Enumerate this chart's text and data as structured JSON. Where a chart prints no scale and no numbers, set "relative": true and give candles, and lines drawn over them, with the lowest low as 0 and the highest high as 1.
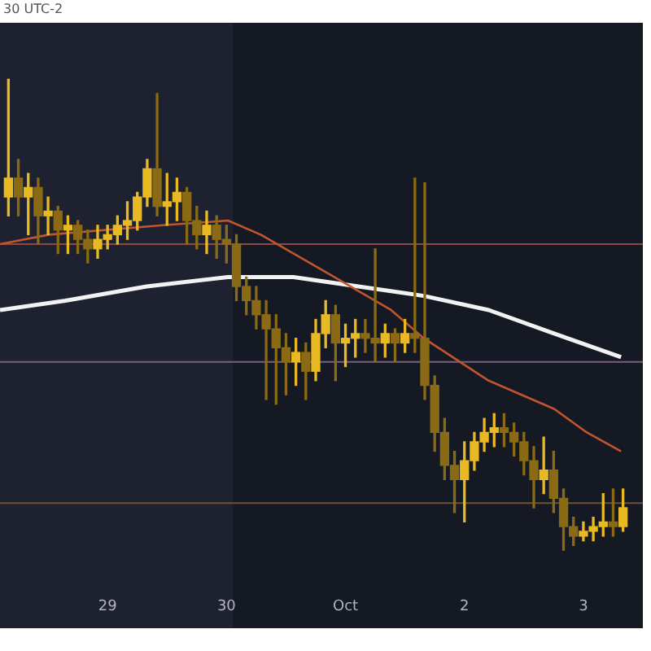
{
  "chart_data": {
    "type": "candlestick",
    "relative": true,
    "colors": [
      "#e8b923",
      "#8a6a14",
      "#e8b923",
      "#8a6a14",
      "#e8b923",
      "#8a6a14",
      "#e8b923",
      "#8a6a14",
      "#8a6a14",
      "#e8b923",
      "#e8b923",
      "#e8b923",
      "#e8b923",
      "#e8b923",
      "#e8b923",
      "#8a6a14",
      "#e8b923",
      "#e8b923",
      "#8a6a14",
      "#8a6a14",
      "#e8b923",
      "#8a6a14",
      "#8a6a14",
      "#8a6a14",
      "#8a6a14",
      "#8a6a14",
      "#8a6a14",
      "#8a6a14",
      "#8a6a14",
      "#e8b923",
      "#8a6a14",
      "#e8b923",
      "#e8b923",
      "#8a6a14",
      "#e8b923",
      "#e8b923",
      "#8a6a14",
      "#8a6a14",
      "#e8b923",
      "#8a6a14",
      "#e8b923",
      "#8a6a14",
      "#8a6a14",
      "#8a6a14",
      "#8a6a14",
      "#8a6a14",
      "#e8b923",
      "#e8b923",
      "#e8b923",
      "#e8b923",
      "#8a6a14",
      "#8a6a14",
      "#8a6a14",
      "#8a6a14",
      "#e8b923",
      "#8a6a14",
      "#8a6a14",
      "#8a6a14",
      "#e8b923",
      "#e8b923",
      "#e8b923",
      "#8a6a14",
      "#e8b923"
    ],
    "annotations": [
      "30 UTC-2"
    ],
    "x": [
      "--09-28T04:00",
      "--09-28T06:00",
      "--09-28T08:00",
      "--09-28T10:00",
      "--09-28T12:00",
      "--09-28T14:00",
      "--09-28T16:00",
      "--09-28T18:00",
      "--09-28T20:00",
      "--09-28T22:00",
      "--09-29T00:00",
      "--09-29T02:00",
      "--09-29T04:00",
      "--09-29T06:00",
      "--09-29T08:00",
      "--09-29T10:00",
      "--09-29T12:00",
      "--09-29T14:00",
      "--09-29T16:00",
      "--09-29T18:00",
      "--09-29T20:00",
      "--09-29T22:00",
      "--09-30T00:00",
      "--09-30T02:00",
      "--09-30T04:00",
      "--09-30T06:00",
      "--09-30T08:00",
      "--09-30T10:00",
      "--09-30T12:00",
      "--09-30T14:00",
      "--09-30T16:00",
      "--09-30T18:00",
      "--09-30T20:00",
      "--09-30T22:00",
      "--10-01T00:00",
      "--10-01T02:00",
      "--10-01T04:00",
      "--10-01T06:00",
      "--10-01T08:00",
      "--10-01T10:00",
      "--10-01T12:00",
      "--10-01T14:00",
      "--10-01T16:00",
      "--10-01T18:00",
      "--10-01T20:00",
      "--10-01T22:00",
      "--10-02T00:00",
      "--10-02T02:00",
      "--10-02T04:00",
      "--10-02T06:00",
      "--10-02T08:00",
      "--10-02T10:00",
      "--10-02T12:00",
      "--10-02T14:00",
      "--10-02T16:00",
      "--10-02T18:00",
      "--10-02T20:00",
      "--10-02T22:00",
      "--10-03T00:00",
      "--10-03T02:00",
      "--10-03T04:00",
      "--10-03T06:00",
      "--10-03T08:00"
    ],
    "ohlc": [
      [
        0.75,
        1.0,
        0.71,
        0.79
      ],
      [
        0.79,
        0.83,
        0.71,
        0.75
      ],
      [
        0.75,
        0.8,
        0.67,
        0.77
      ],
      [
        0.77,
        0.79,
        0.65,
        0.71
      ],
      [
        0.71,
        0.75,
        0.67,
        0.72
      ],
      [
        0.72,
        0.73,
        0.63,
        0.68
      ],
      [
        0.68,
        0.71,
        0.63,
        0.69
      ],
      [
        0.69,
        0.7,
        0.63,
        0.66
      ],
      [
        0.66,
        0.68,
        0.61,
        0.64
      ],
      [
        0.64,
        0.69,
        0.62,
        0.66
      ],
      [
        0.66,
        0.69,
        0.64,
        0.67
      ],
      [
        0.67,
        0.71,
        0.65,
        0.69
      ],
      [
        0.69,
        0.74,
        0.66,
        0.7
      ],
      [
        0.7,
        0.76,
        0.68,
        0.75
      ],
      [
        0.75,
        0.83,
        0.73,
        0.81
      ],
      [
        0.81,
        0.97,
        0.71,
        0.73
      ],
      [
        0.73,
        0.8,
        0.69,
        0.74
      ],
      [
        0.74,
        0.79,
        0.7,
        0.76
      ],
      [
        0.76,
        0.77,
        0.65,
        0.7
      ],
      [
        0.7,
        0.73,
        0.64,
        0.67
      ],
      [
        0.67,
        0.72,
        0.63,
        0.69
      ],
      [
        0.69,
        0.71,
        0.62,
        0.66
      ],
      [
        0.66,
        0.69,
        0.61,
        0.65
      ],
      [
        0.65,
        0.67,
        0.53,
        0.56
      ],
      [
        0.56,
        0.58,
        0.5,
        0.53
      ],
      [
        0.53,
        0.56,
        0.47,
        0.5
      ],
      [
        0.5,
        0.53,
        0.32,
        0.47
      ],
      [
        0.47,
        0.5,
        0.31,
        0.43
      ],
      [
        0.43,
        0.46,
        0.33,
        0.4
      ],
      [
        0.4,
        0.45,
        0.35,
        0.42
      ],
      [
        0.42,
        0.44,
        0.32,
        0.38
      ],
      [
        0.38,
        0.49,
        0.36,
        0.46
      ],
      [
        0.46,
        0.53,
        0.43,
        0.5
      ],
      [
        0.5,
        0.52,
        0.36,
        0.44
      ],
      [
        0.44,
        0.48,
        0.39,
        0.45
      ],
      [
        0.45,
        0.49,
        0.41,
        0.46
      ],
      [
        0.46,
        0.49,
        0.42,
        0.45
      ],
      [
        0.45,
        0.64,
        0.4,
        0.44
      ],
      [
        0.44,
        0.48,
        0.41,
        0.46
      ],
      [
        0.46,
        0.47,
        0.4,
        0.44
      ],
      [
        0.44,
        0.49,
        0.42,
        0.46
      ],
      [
        0.46,
        0.79,
        0.42,
        0.45
      ],
      [
        0.45,
        0.78,
        0.32,
        0.35
      ],
      [
        0.35,
        0.37,
        0.21,
        0.25
      ],
      [
        0.25,
        0.28,
        0.15,
        0.18
      ],
      [
        0.18,
        0.21,
        0.08,
        0.15
      ],
      [
        0.15,
        0.23,
        0.06,
        0.19
      ],
      [
        0.19,
        0.25,
        0.17,
        0.23
      ],
      [
        0.23,
        0.28,
        0.21,
        0.25
      ],
      [
        0.25,
        0.29,
        0.22,
        0.26
      ],
      [
        0.26,
        0.29,
        0.22,
        0.25
      ],
      [
        0.25,
        0.27,
        0.2,
        0.23
      ],
      [
        0.23,
        0.25,
        0.16,
        0.19
      ],
      [
        0.19,
        0.22,
        0.09,
        0.15
      ],
      [
        0.15,
        0.24,
        0.12,
        0.17
      ],
      [
        0.17,
        0.21,
        0.08,
        0.11
      ],
      [
        0.11,
        0.13,
        0.0,
        0.05
      ],
      [
        0.05,
        0.07,
        0.01,
        0.03
      ],
      [
        0.03,
        0.06,
        0.02,
        0.04
      ],
      [
        0.04,
        0.07,
        0.02,
        0.05
      ],
      [
        0.05,
        0.12,
        0.03,
        0.06
      ],
      [
        0.06,
        0.13,
        0.03,
        0.05
      ],
      [
        0.05,
        0.13,
        0.04,
        0.09
      ]
    ],
    "series": [
      {
        "type": "line",
        "color": "#c0552f",
        "x": [
          "--09-28T02:18",
          "--09-28T12:12",
          "--09-29T11:12",
          "--09-30T00:18",
          "--09-30T06:54",
          "--09-30T20:06",
          "--10-01T09:12",
          "--10-01T15:48",
          "--10-02T04:54",
          "--10-02T18:06",
          "--10-03T00:42",
          "--10-03T07:36"
        ],
        "values": [
          0.65,
          0.67,
          0.69,
          0.7,
          0.67,
          0.59,
          0.51,
          0.45,
          0.36,
          0.3,
          0.25,
          0.21
        ]
      },
      {
        "type": "line",
        "color": "#f2f2f2",
        "x": [
          "--09-28T02:18",
          "--09-28T15:30",
          "--09-29T07:54",
          "--09-30T00:18",
          "--09-30T13:30",
          "--10-01T02:36",
          "--10-01T15:48",
          "--10-02T04:54",
          "--10-02T18:06",
          "--10-03T07:36"
        ],
        "values": [
          0.51,
          0.53,
          0.56,
          0.58,
          0.58,
          0.56,
          0.54,
          0.51,
          0.46,
          0.41
        ]
      }
    ],
    "xlim": [
      "--09-28T02:18",
      "--10-03T12:00"
    ],
    "xticks": [
      {
        "value": "--09-29",
        "label": "29"
      },
      {
        "value": "--09-30",
        "label": "30"
      },
      {
        "value": "--10-01",
        "label": "Oct"
      },
      {
        "value": "--10-02",
        "label": "2"
      },
      {
        "value": "--10-03",
        "label": "3"
      }
    ],
    "bands": [
      {
        "axis": "x",
        "from": "--09-30T01:18",
        "to": "--10-03T12:00",
        "color": "#141924"
      }
    ],
    "ref_lines": [
      {
        "axis": "y",
        "value": 0.65,
        "color": "#8c4a44"
      },
      {
        "axis": "y",
        "value": 0.4,
        "color": "#7a5f7e"
      },
      {
        "axis": "y",
        "value": 0.1,
        "color": "#6e5236"
      }
    ],
    "grid": false,
    "legend": false
  }
}
